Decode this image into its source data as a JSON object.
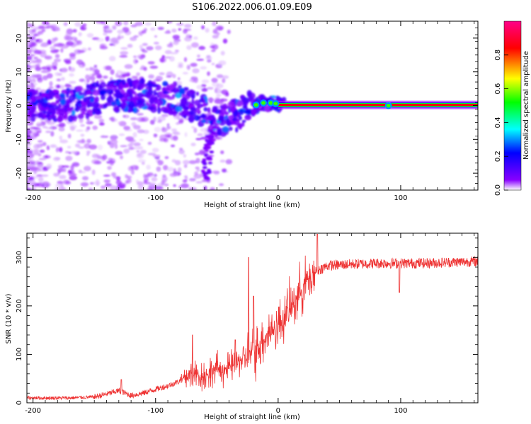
{
  "title": "S106.2022.006.01.09.E09",
  "chart_data": [
    {
      "type": "heatmap",
      "xlabel": "Height of straight line (km)",
      "ylabel": "Frequency (Hz)",
      "xlim": [
        -205,
        163
      ],
      "ylim": [
        -25,
        25
      ],
      "xticks": [
        -200,
        -100,
        0,
        100
      ],
      "yticks": [
        -20,
        -10,
        0,
        10,
        20
      ],
      "colorbar": {
        "label": "Normalized spectral amplitude",
        "range": [
          0,
          1
        ],
        "ticks": [
          "0.0",
          "0.2",
          "0.4",
          "0.6",
          "0.8"
        ],
        "tick_values": [
          0,
          0.2,
          0.4,
          0.6,
          0.8
        ],
        "colormap": [
          "#ffffff",
          "#8800ff",
          "#0000ff",
          "#00ffff",
          "#00ff00",
          "#ffff00",
          "#ff0000",
          "#ff0088"
        ]
      },
      "grid": false,
      "main_band": {
        "x_start": 0,
        "x_end": 163,
        "frequency_hz": 0.2,
        "description_values": "continuous narrow band near 0 Hz at highest amplitude"
      },
      "ridge": [
        {
          "x": -200,
          "f": 0
        },
        {
          "x": -180,
          "f": 0
        },
        {
          "x": -160,
          "f": 1
        },
        {
          "x": -140,
          "f": 3
        },
        {
          "x": -120,
          "f": 3
        },
        {
          "x": -100,
          "f": 3
        },
        {
          "x": -80,
          "f": 2
        },
        {
          "x": -60,
          "f": -2
        },
        {
          "x": -50,
          "f": -5
        },
        {
          "x": -40,
          "f": -4
        },
        {
          "x": -30,
          "f": -2
        },
        {
          "x": -20,
          "f": 0
        },
        {
          "x": -10,
          "f": 1
        },
        {
          "x": 0,
          "f": 0.5
        },
        {
          "x": 160,
          "f": 0.2
        }
      ]
    },
    {
      "type": "line",
      "xlabel": "Height of straight line (km)",
      "ylabel": "SNR (10 * v/v)",
      "xlim": [
        -205,
        163
      ],
      "ylim": [
        0,
        350
      ],
      "xticks": [
        -200,
        -100,
        0,
        100
      ],
      "yticks": [
        0,
        100,
        200,
        300
      ],
      "grid": false,
      "series": [
        {
          "color": "#ee3333",
          "points": [
            {
              "x": -205,
              "y": 10
            },
            {
              "x": -190,
              "y": 10
            },
            {
              "x": -170,
              "y": 10
            },
            {
              "x": -150,
              "y": 12
            },
            {
              "x": -140,
              "y": 18
            },
            {
              "x": -130,
              "y": 25
            },
            {
              "x": -120,
              "y": 15
            },
            {
              "x": -110,
              "y": 20
            },
            {
              "x": -100,
              "y": 28
            },
            {
              "x": -90,
              "y": 35
            },
            {
              "x": -80,
              "y": 45
            },
            {
              "x": -70,
              "y": 60
            },
            {
              "x": -60,
              "y": 55
            },
            {
              "x": -50,
              "y": 70
            },
            {
              "x": -40,
              "y": 70
            },
            {
              "x": -30,
              "y": 90
            },
            {
              "x": -20,
              "y": 100
            },
            {
              "x": -10,
              "y": 140
            },
            {
              "x": 0,
              "y": 160
            },
            {
              "x": 10,
              "y": 195
            },
            {
              "x": 20,
              "y": 240
            },
            {
              "x": 30,
              "y": 270
            },
            {
              "x": 40,
              "y": 283
            },
            {
              "x": 60,
              "y": 286
            },
            {
              "x": 80,
              "y": 288
            },
            {
              "x": 100,
              "y": 288
            },
            {
              "x": 120,
              "y": 288
            },
            {
              "x": 140,
              "y": 290
            },
            {
              "x": 163,
              "y": 292
            }
          ],
          "spikes": [
            {
              "x": -128,
              "y": 48
            },
            {
              "x": -70,
              "y": 140
            },
            {
              "x": -35,
              "y": 130
            },
            {
              "x": -24,
              "y": 300
            },
            {
              "x": -20,
              "y": 220
            },
            {
              "x": 32,
              "y": 348
            },
            {
              "x": 99,
              "y": 228
            }
          ]
        }
      ]
    }
  ]
}
